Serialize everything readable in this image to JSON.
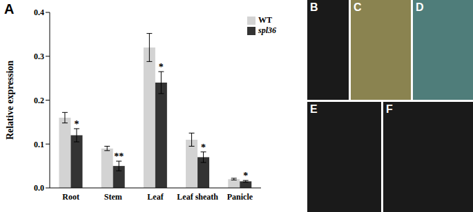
{
  "chart_data": {
    "type": "bar",
    "panel": "A",
    "y_label": "Relative expression",
    "categories": [
      "Root",
      "Stem",
      "Leaf",
      "Leaf sheath",
      "Panicle"
    ],
    "series": [
      {
        "name": "WT",
        "color": "#d3d3d3",
        "values": [
          0.16,
          0.09,
          0.32,
          0.11,
          0.02
        ],
        "errors": [
          0.012,
          0.005,
          0.032,
          0.015,
          0.002
        ]
      },
      {
        "name": "spl36",
        "color": "#333333",
        "values": [
          0.12,
          0.05,
          0.24,
          0.07,
          0.015
        ],
        "errors": [
          0.015,
          0.011,
          0.025,
          0.012,
          0.002
        ],
        "annotations": [
          "*",
          "**",
          "*",
          "*",
          "*"
        ]
      }
    ],
    "ylim": [
      0,
      0.4
    ],
    "yticks": [
      {
        "value": 0,
        "label": "0.0"
      },
      0.1,
      0.2,
      0.3,
      0.4
    ],
    "legend": "upper right",
    "grid": false
  },
  "photo_panels": [
    "B",
    "C",
    "D",
    "E",
    "F"
  ]
}
